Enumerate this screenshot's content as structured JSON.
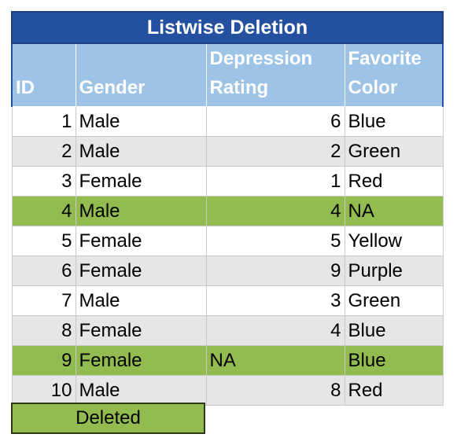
{
  "title": "Listwise Deletion",
  "headers": {
    "id": "ID",
    "gender": "Gender",
    "depression_rating_line1": "Depression",
    "depression_rating_line2": "Rating",
    "favorite_color_line1": "Favorite",
    "favorite_color_line2": "Color"
  },
  "rows": [
    {
      "id": "1",
      "gender": "Male",
      "depression_rating": "6",
      "favorite_color": "Blue",
      "deleted": false
    },
    {
      "id": "2",
      "gender": "Male",
      "depression_rating": "2",
      "favorite_color": "Green",
      "deleted": false
    },
    {
      "id": "3",
      "gender": "Female",
      "depression_rating": "1",
      "favorite_color": "Red",
      "deleted": false
    },
    {
      "id": "4",
      "gender": "Male",
      "depression_rating": "4",
      "favorite_color": "NA",
      "deleted": true
    },
    {
      "id": "5",
      "gender": "Female",
      "depression_rating": "5",
      "favorite_color": "Yellow",
      "deleted": false
    },
    {
      "id": "6",
      "gender": "Female",
      "depression_rating": "9",
      "favorite_color": "Purple",
      "deleted": false
    },
    {
      "id": "7",
      "gender": "Male",
      "depression_rating": "3",
      "favorite_color": "Green",
      "deleted": false
    },
    {
      "id": "8",
      "gender": "Female",
      "depression_rating": "4",
      "favorite_color": "Blue",
      "deleted": false
    },
    {
      "id": "9",
      "gender": "Female",
      "depression_rating": "NA",
      "favorite_color": "Blue",
      "deleted": true
    },
    {
      "id": "10",
      "gender": "Male",
      "depression_rating": "8",
      "favorite_color": "Red",
      "deleted": false
    }
  ],
  "legend": {
    "label": "Deleted",
    "color": "#92bc4f"
  },
  "colors": {
    "title_background": "#2450a0",
    "header_background": "#9dc3e6",
    "alternate_row": "#e7e6e6",
    "deleted_row": "#92bc4f"
  }
}
